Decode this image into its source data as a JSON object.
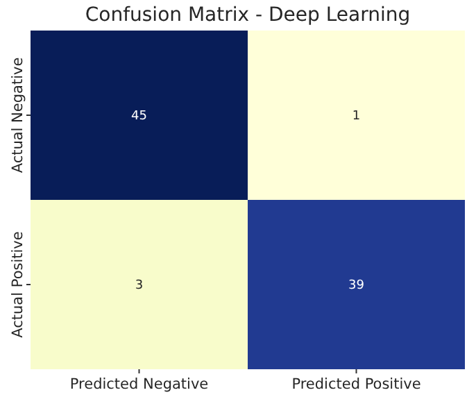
{
  "chart_data": {
    "type": "heatmap",
    "title": "Confusion Matrix - Deep Learning",
    "categories": [
      "Predicted Negative",
      "Predicted Positive"
    ],
    "y_categories": [
      "Actual Negative",
      "Actual Positive"
    ],
    "cells": [
      [
        45,
        1
      ],
      [
        3,
        39
      ]
    ],
    "data_labels": true
  }
}
